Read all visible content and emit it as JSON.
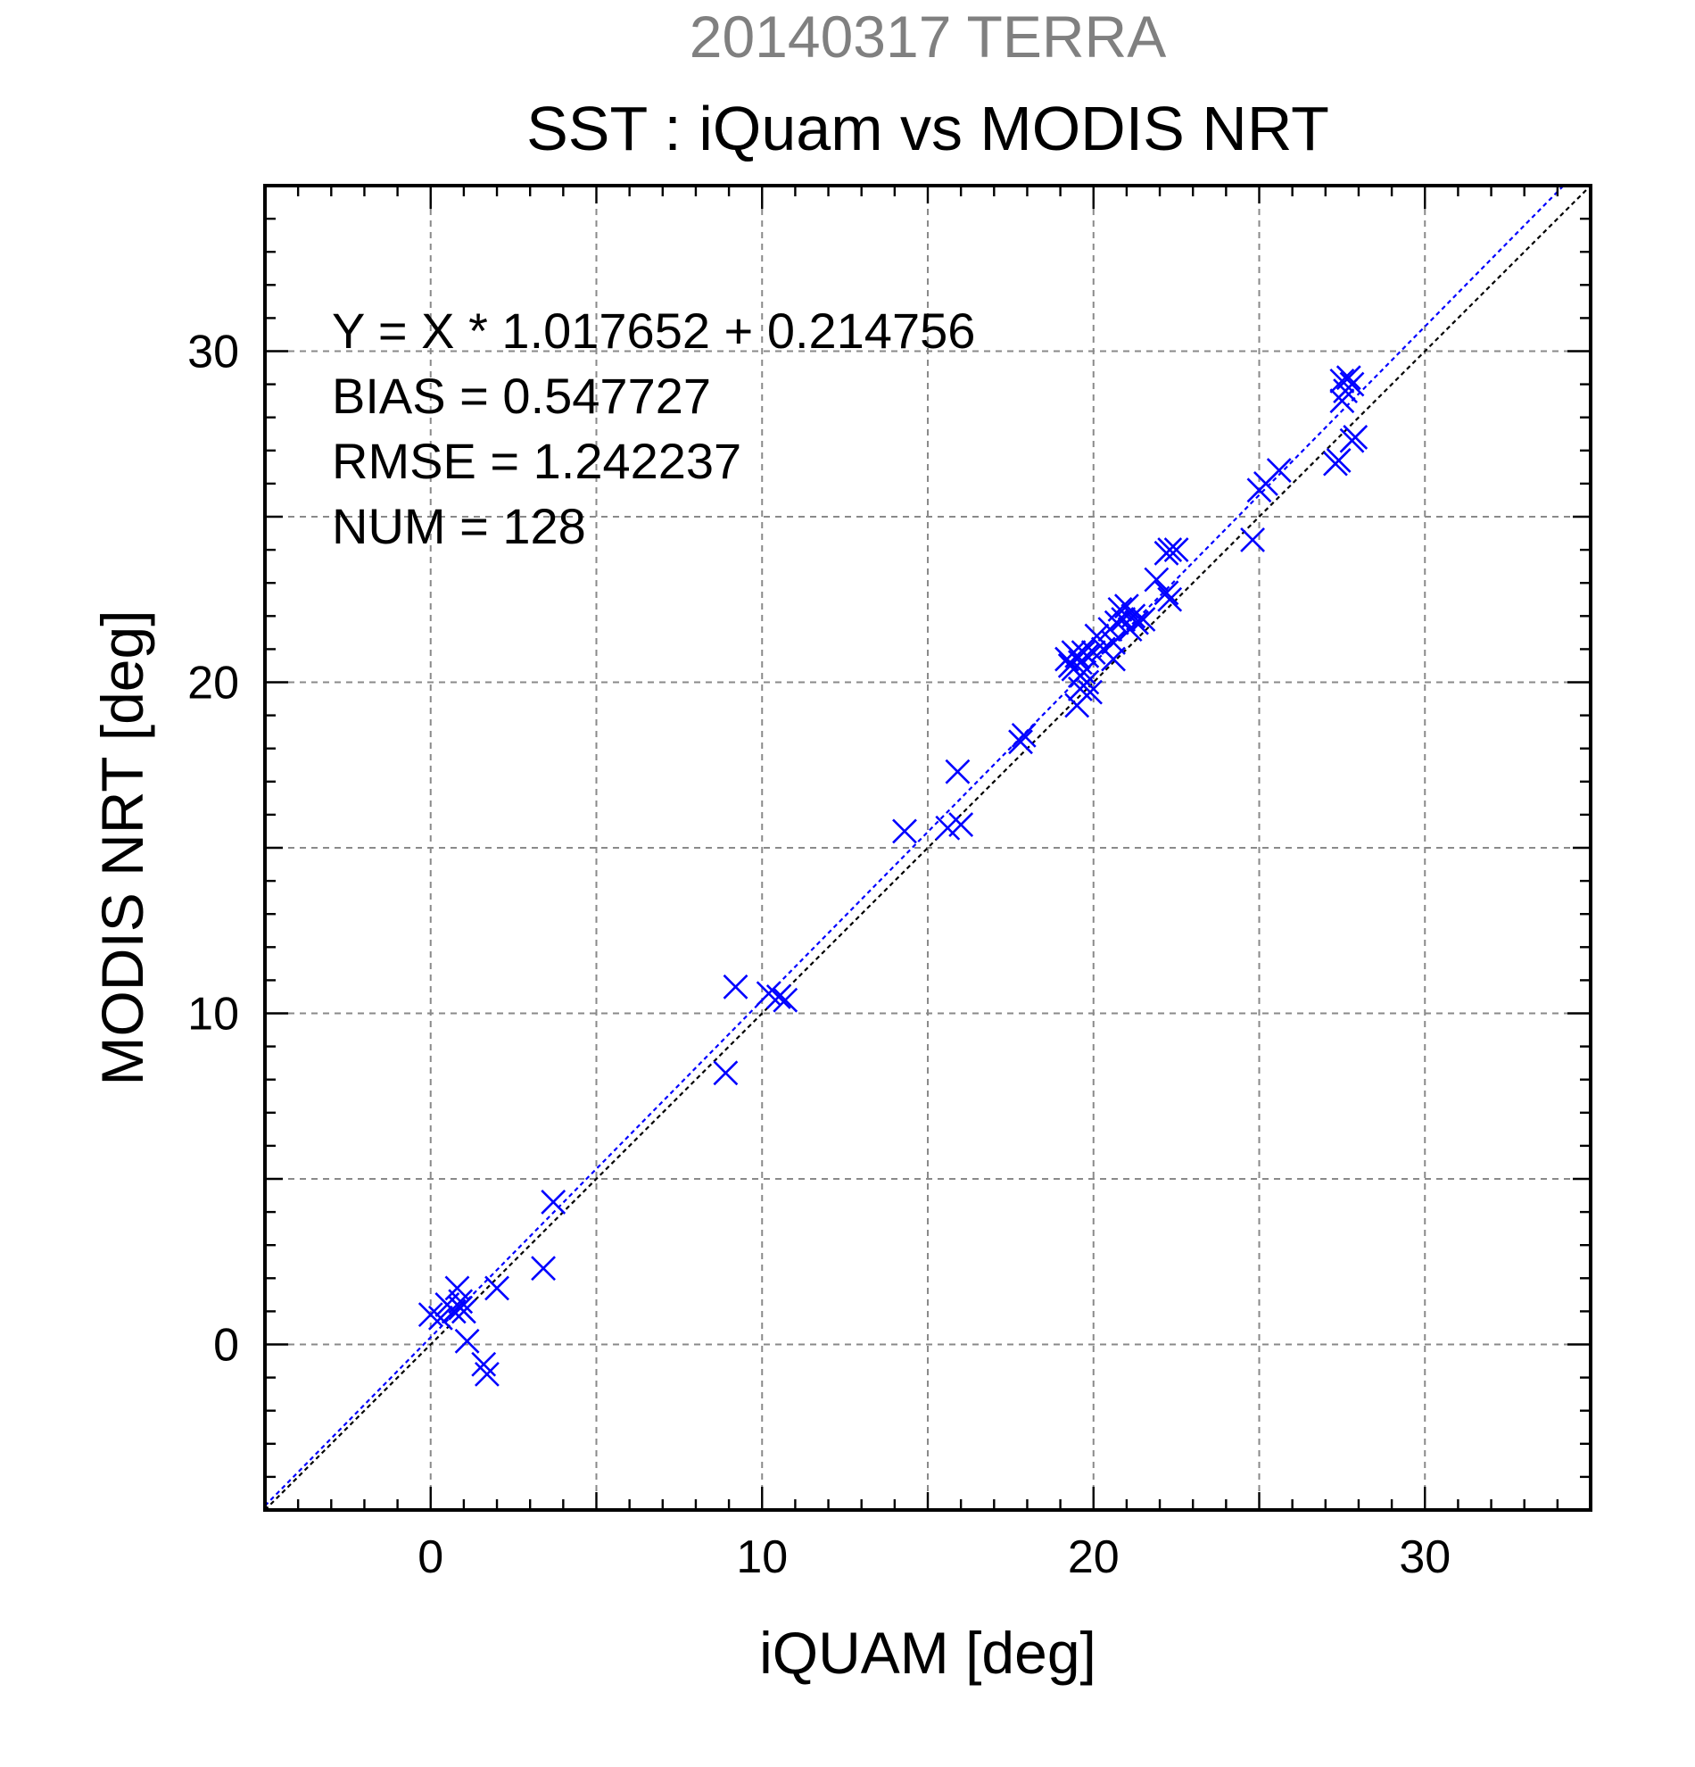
{
  "chart_data": {
    "type": "scatter",
    "title": "SST : iQuam vs MODIS NRT",
    "subtitle": "20140317 TERRA",
    "xlabel": "iQUAM [deg]",
    "ylabel": "MODIS NRT [deg]",
    "xlim": [
      -5,
      35
    ],
    "ylim": [
      -5,
      35
    ],
    "xticks": [
      0,
      10,
      20,
      30
    ],
    "yticks": [
      0,
      10,
      20,
      30
    ],
    "xtick_labels": [
      "0",
      "10",
      "20",
      "30"
    ],
    "ytick_labels": [
      "0",
      "10",
      "20",
      "30"
    ],
    "grid": true,
    "stats": [
      "Y = X * 1.017652 + 0.214756",
      "BIAS = 0.547727",
      "RMSE = 1.242237",
      "NUM = 128"
    ],
    "fit_line": {
      "slope": 1.017652,
      "intercept": 0.214756,
      "color": "#0000ff"
    },
    "identity_line": {
      "slope": 1,
      "intercept": 0,
      "color": "#000000"
    },
    "series": [
      {
        "color": "#0000ff",
        "marker": "x",
        "points": [
          [
            0.0,
            0.9
          ],
          [
            0.3,
            0.8
          ],
          [
            0.5,
            1.2
          ],
          [
            0.7,
            1.0
          ],
          [
            0.8,
            1.7
          ],
          [
            0.9,
            1.3
          ],
          [
            1.0,
            1.0
          ],
          [
            0.9,
            1.1
          ],
          [
            1.1,
            0.1
          ],
          [
            1.6,
            -0.6
          ],
          [
            1.7,
            -0.9
          ],
          [
            2.0,
            1.7
          ],
          [
            3.4,
            2.3
          ],
          [
            3.7,
            4.3
          ],
          [
            8.9,
            8.2
          ],
          [
            9.2,
            10.8
          ],
          [
            10.2,
            10.6
          ],
          [
            10.5,
            10.5
          ],
          [
            10.7,
            10.4
          ],
          [
            14.3,
            15.5
          ],
          [
            15.6,
            15.6
          ],
          [
            15.9,
            17.3
          ],
          [
            16.0,
            15.7
          ],
          [
            17.8,
            18.2
          ],
          [
            17.9,
            18.4
          ],
          [
            19.2,
            20.7
          ],
          [
            19.3,
            20.5
          ],
          [
            19.4,
            20.4
          ],
          [
            19.5,
            20.8
          ],
          [
            19.6,
            20.6
          ],
          [
            19.7,
            20.3
          ],
          [
            19.5,
            19.3
          ],
          [
            19.6,
            19.8
          ],
          [
            19.8,
            20.0
          ],
          [
            19.9,
            19.7
          ],
          [
            19.8,
            20.8
          ],
          [
            20.0,
            20.9
          ],
          [
            19.6,
            20.2
          ],
          [
            19.4,
            20.9
          ],
          [
            19.7,
            20.9
          ],
          [
            20.1,
            21.4
          ],
          [
            20.3,
            21.0
          ],
          [
            20.5,
            21.6
          ],
          [
            20.6,
            21.2
          ],
          [
            20.7,
            21.8
          ],
          [
            20.8,
            22.2
          ],
          [
            20.6,
            20.7
          ],
          [
            20.9,
            21.9
          ],
          [
            21.0,
            22.3
          ],
          [
            21.1,
            21.6
          ],
          [
            21.2,
            22.0
          ],
          [
            21.3,
            21.8
          ],
          [
            21.5,
            21.9
          ],
          [
            21.9,
            23.1
          ],
          [
            22.2,
            22.7
          ],
          [
            22.3,
            22.5
          ],
          [
            22.2,
            23.9
          ],
          [
            22.3,
            24.0
          ],
          [
            22.5,
            24.0
          ],
          [
            24.8,
            24.3
          ],
          [
            25.0,
            25.8
          ],
          [
            25.2,
            26.0
          ],
          [
            25.6,
            26.4
          ],
          [
            27.3,
            26.6
          ],
          [
            27.4,
            26.7
          ],
          [
            27.5,
            28.5
          ],
          [
            27.5,
            29.1
          ],
          [
            27.6,
            28.8
          ],
          [
            27.7,
            29.2
          ],
          [
            27.8,
            29.0
          ],
          [
            27.9,
            27.4
          ],
          [
            27.8,
            27.3
          ]
        ]
      }
    ]
  }
}
